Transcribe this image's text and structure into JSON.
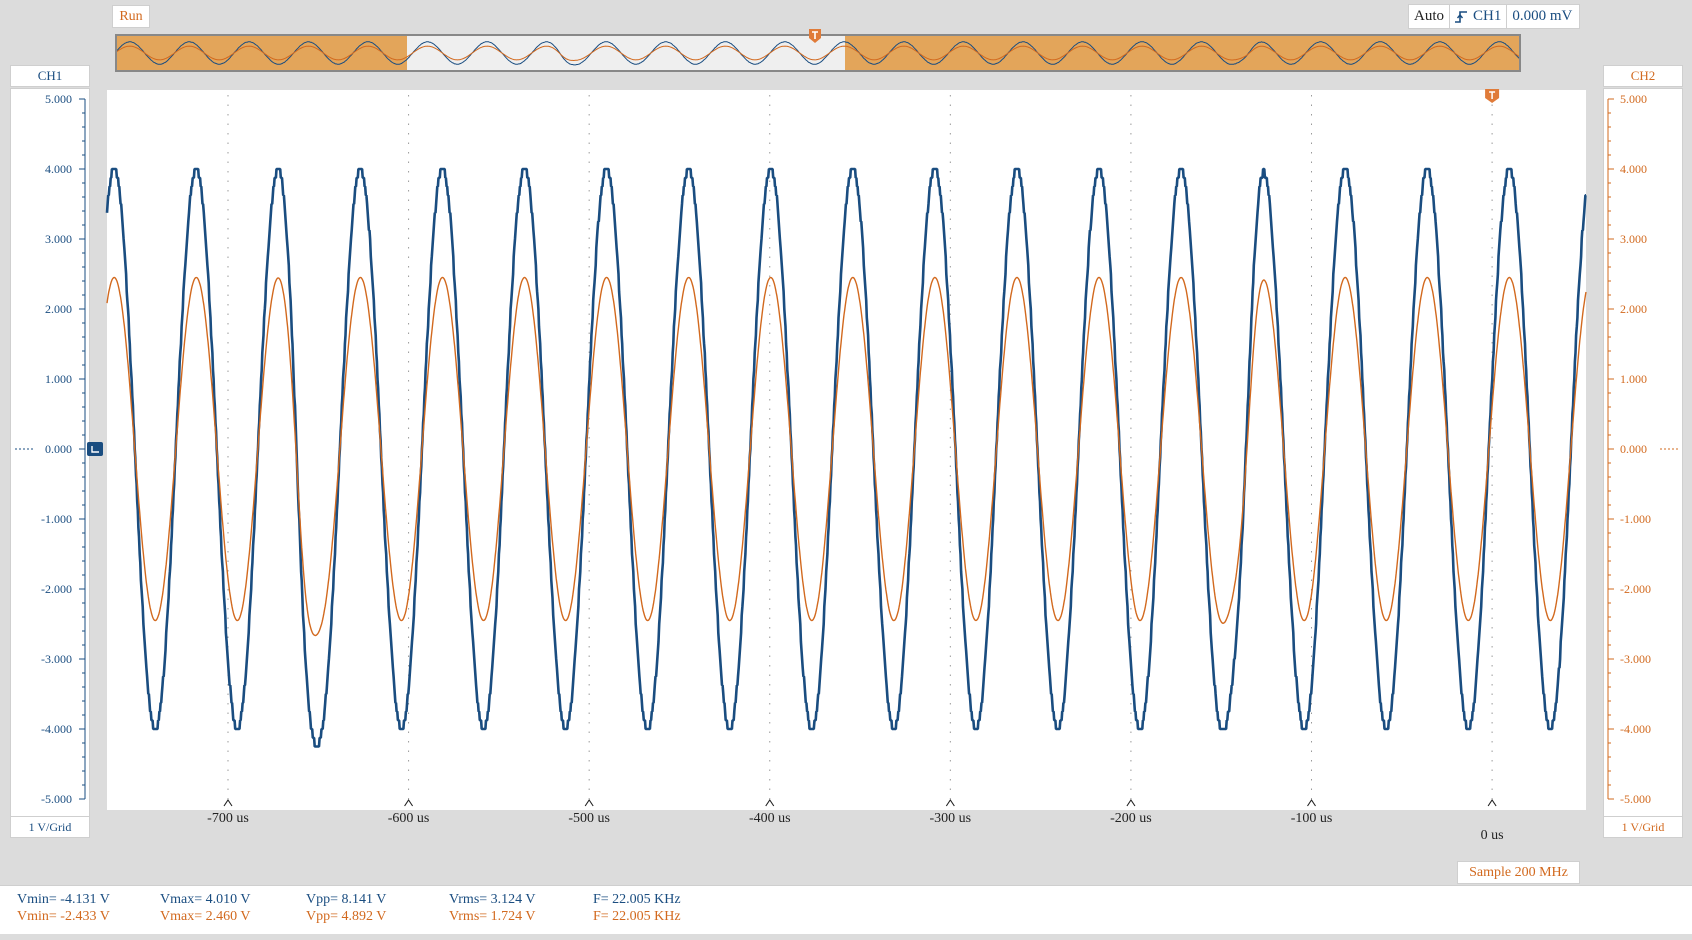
{
  "toolbar": {
    "run_label": "Run",
    "trigger_mode": "Auto",
    "trigger_source": "CH1",
    "trigger_level": "0.000 mV"
  },
  "colors": {
    "ch1": "#1a4d80",
    "ch2": "#d2691e",
    "overview_shade": "#e3a55a",
    "grid": "#9a9a9a"
  },
  "icons": {
    "trigger_edge": "rising-edge-icon",
    "trigger_marker": "trigger-marker-icon",
    "ground_marker": "ground-marker-icon"
  },
  "channels": {
    "ch1": {
      "label": "CH1",
      "scale": "1 V/Grid"
    },
    "ch2": {
      "label": "CH2",
      "scale": "1 V/Grid"
    }
  },
  "chart_data": {
    "type": "line",
    "xlabel": "",
    "ylabel": "",
    "x_tick_labels": [
      "-700 us",
      "-600 us",
      "-500 us",
      "-400 us",
      "-300 us",
      "-200 us",
      "-100 us",
      "0 us"
    ],
    "x_ticks": [
      -700,
      -600,
      -500,
      -400,
      -300,
      -200,
      -100,
      0
    ],
    "xlim": [
      -767,
      52
    ],
    "y_tick_labels": [
      "5.000",
      "4.000",
      "3.000",
      "2.000",
      "1.000",
      "0.000",
      "-1.000",
      "-2.000",
      "-3.000",
      "-4.000",
      "-5.000"
    ],
    "y_ticks": [
      5,
      4,
      3,
      2,
      1,
      0,
      -1,
      -2,
      -3,
      -4,
      -5
    ],
    "ylim": [
      -5,
      5
    ],
    "grid": true,
    "series": [
      {
        "name": "CH1",
        "frequency_khz": 22.005,
        "amplitude_v": 4.0,
        "quantization_v": 0.125,
        "glitch_times_us": [
          -658,
          -138
        ],
        "glitch_depth_v": 1.1
      },
      {
        "name": "CH2",
        "frequency_khz": 22.005,
        "amplitude_v": 2.45,
        "quantization_v": 0,
        "glitch_times_us": [
          -658,
          -138
        ],
        "glitch_depth_v": 0.9
      }
    ]
  },
  "measurements": {
    "ch1": {
      "vmin": "Vmin= -4.131 V",
      "vmax": "Vmax= 4.010 V",
      "vpp": "Vpp= 8.141 V",
      "vrms": "Vrms= 3.124 V",
      "freq": "F= 22.005 KHz"
    },
    "ch2": {
      "vmin": "Vmin= -2.433 V",
      "vmax": "Vmax= 2.460 V",
      "vpp": "Vpp= 4.892 V",
      "vrms": "Vrms= 1.724 V",
      "freq": "F= 22.005 KHz"
    }
  },
  "status": {
    "sample_rate": "Sample 200 MHz"
  }
}
